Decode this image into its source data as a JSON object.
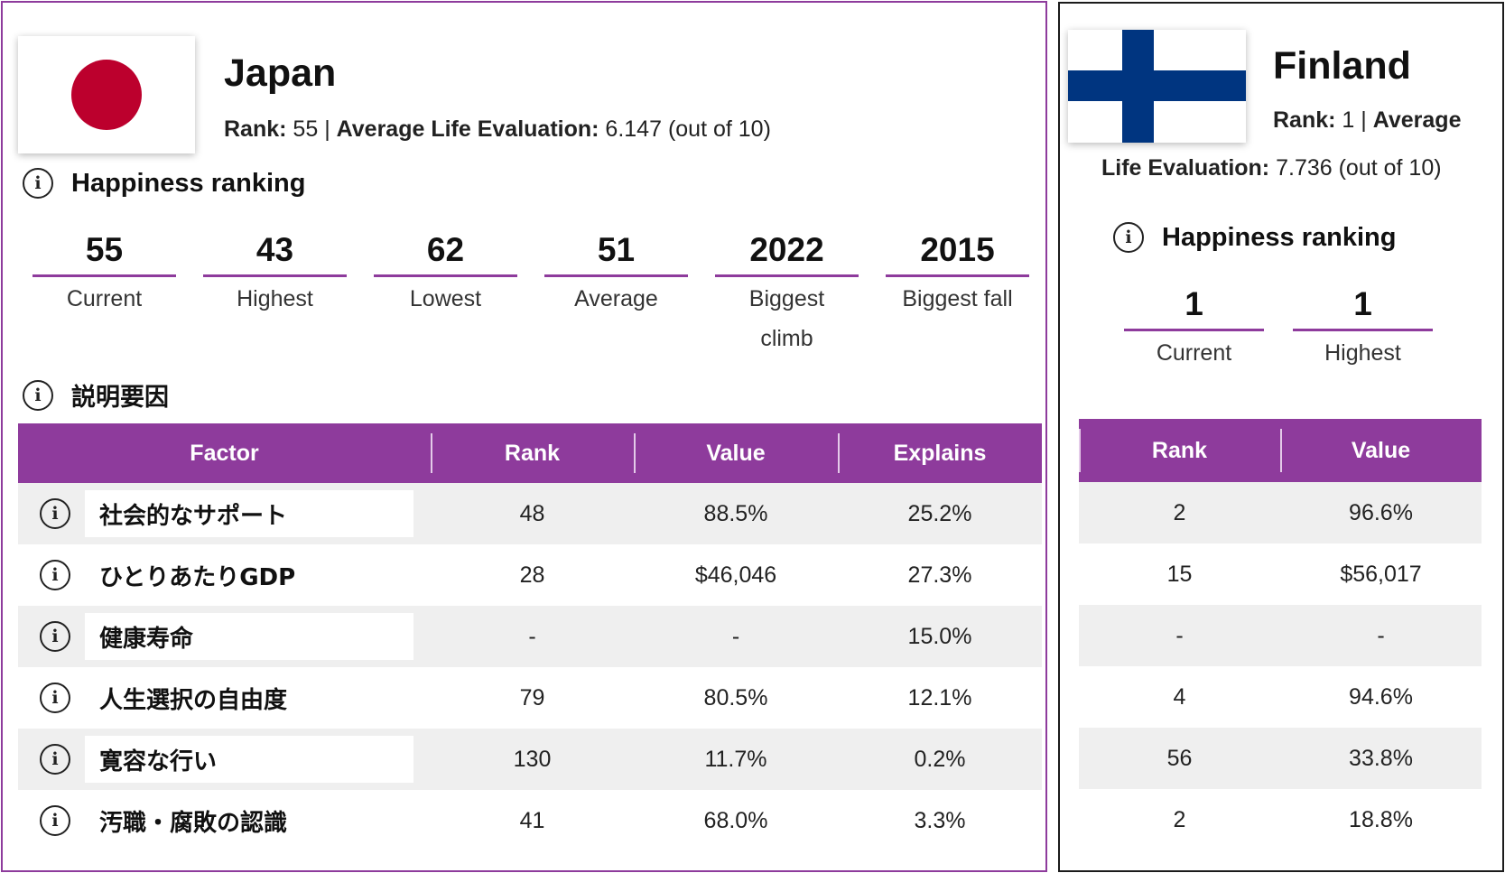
{
  "japan": {
    "name": "Japan",
    "rank_label": "Rank:",
    "rank_value": "55",
    "divider": "|",
    "ale_label": "Average Life Evaluation:",
    "ale_value": "6.147",
    "ale_suffix": "(out of 10)",
    "happiness_heading": "Happiness ranking",
    "stats": [
      {
        "value": "55",
        "label": "Current"
      },
      {
        "value": "43",
        "label": "Highest"
      },
      {
        "value": "62",
        "label": "Lowest"
      },
      {
        "value": "51",
        "label": "Average"
      },
      {
        "value": "2022",
        "label": "Biggest climb"
      },
      {
        "value": "2015",
        "label": "Biggest fall"
      }
    ],
    "factors_heading": "説明要因",
    "table_headers": {
      "factor": "Factor",
      "rank": "Rank",
      "value": "Value",
      "explains": "Explains"
    },
    "rows": [
      {
        "factor": "社会的なサポート",
        "rank": "48",
        "value": "88.5%",
        "explains": "25.2%"
      },
      {
        "factor": "ひとりあたりGDP",
        "rank": "28",
        "value": "$46,046",
        "explains": "27.3%"
      },
      {
        "factor": "健康寿命",
        "rank": "-",
        "value": "-",
        "explains": "15.0%"
      },
      {
        "factor": "人生選択の自由度",
        "rank": "79",
        "value": "80.5%",
        "explains": "12.1%"
      },
      {
        "factor": "寛容な行い",
        "rank": "130",
        "value": "11.7%",
        "explains": "0.2%"
      },
      {
        "factor": "汚職・腐敗の認識",
        "rank": "41",
        "value": "68.0%",
        "explains": "3.3%"
      }
    ]
  },
  "finland": {
    "name": "Finland",
    "rank_label": "Rank:",
    "rank_value": "1",
    "divider": "|",
    "ale_label_part1": "Average",
    "ale_label_part2": "Life Evaluation:",
    "ale_value": "7.736",
    "ale_suffix": "(out of 10)",
    "happiness_heading": "Happiness ranking",
    "stats": [
      {
        "value": "1",
        "label": "Current"
      },
      {
        "value": "1",
        "label": "Highest"
      }
    ],
    "table_headers": {
      "rank": "Rank",
      "value": "Value"
    },
    "rows": [
      {
        "rank": "2",
        "value": "96.6%"
      },
      {
        "rank": "15",
        "value": "$56,017"
      },
      {
        "rank": "-",
        "value": "-"
      },
      {
        "rank": "4",
        "value": "94.6%"
      },
      {
        "rank": "56",
        "value": "33.8%"
      },
      {
        "rank": "2",
        "value": "18.8%"
      }
    ]
  },
  "icons": {
    "info": "info-circle-icon",
    "japan_flag": "japan-flag-icon",
    "finland_flag": "finland-flag-icon",
    "info_glyph": "i"
  },
  "colors": {
    "accent": "#8e3b9c",
    "japan_red": "#bc002d",
    "finland_blue": "#003580",
    "row_alt": "#efefef"
  }
}
